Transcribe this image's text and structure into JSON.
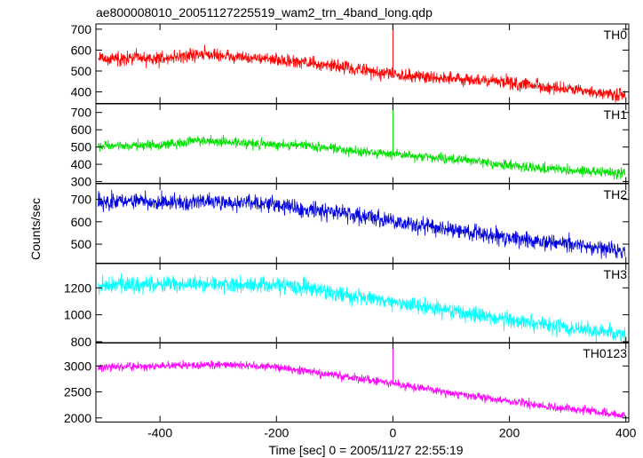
{
  "title": "ae800008010_20051127225519_wam2_trn_4band_long.qdp",
  "chart_data": {
    "type": "line",
    "title": "ae800008010_20051127225519_wam2_trn_4band_long.qdp",
    "xlabel": "Time [sec] 0 = 2005/11/27 22:55:19",
    "ylabel": "Counts/sec",
    "xlim": [
      -510,
      405
    ],
    "x_ticks": [
      -400,
      -200,
      0,
      200,
      400
    ],
    "grid": false,
    "legend": "none",
    "series": [
      {
        "name": "TH0",
        "color": "#ff0000",
        "ylim": [
          345,
          725
        ],
        "y_ticks": [
          400,
          500,
          600,
          700
        ],
        "level_points": [
          [
            -505,
            560
          ],
          [
            -400,
            560
          ],
          [
            -330,
            580
          ],
          [
            -250,
            565
          ],
          [
            -150,
            540
          ],
          [
            -50,
            505
          ],
          [
            0,
            485
          ],
          [
            100,
            465
          ],
          [
            200,
            445
          ],
          [
            300,
            410
          ],
          [
            400,
            380
          ]
        ],
        "noise": 22,
        "spike": {
          "x": 0,
          "y": 722
        }
      },
      {
        "name": "TH1",
        "color": "#00e000",
        "ylim": [
          290,
          750
        ],
        "y_ticks": [
          300,
          400,
          500,
          600,
          700
        ],
        "level_points": [
          [
            -505,
            505
          ],
          [
            -400,
            510
          ],
          [
            -330,
            540
          ],
          [
            -250,
            520
          ],
          [
            -150,
            510
          ],
          [
            -50,
            470
          ],
          [
            0,
            460
          ],
          [
            100,
            430
          ],
          [
            200,
            395
          ],
          [
            300,
            365
          ],
          [
            400,
            345
          ]
        ],
        "noise": 20,
        "spike": {
          "x": 0,
          "y": 745
        }
      },
      {
        "name": "TH2",
        "color": "#0000dd",
        "ylim": [
          415,
          770
        ],
        "y_ticks": [
          500,
          600,
          700
        ],
        "level_points": [
          [
            -505,
            690
          ],
          [
            -400,
            690
          ],
          [
            -300,
            690
          ],
          [
            -200,
            675
          ],
          [
            -100,
            645
          ],
          [
            0,
            600
          ],
          [
            100,
            565
          ],
          [
            200,
            530
          ],
          [
            300,
            500
          ],
          [
            400,
            465
          ]
        ],
        "noise": 26
      },
      {
        "name": "TH3",
        "color": "#00ffff",
        "ylim": [
          790,
          1380
        ],
        "y_ticks": [
          800,
          1000,
          1200
        ],
        "level_points": [
          [
            -505,
            1220
          ],
          [
            -400,
            1230
          ],
          [
            -300,
            1225
          ],
          [
            -200,
            1220
          ],
          [
            -150,
            1200
          ],
          [
            -50,
            1130
          ],
          [
            0,
            1090
          ],
          [
            100,
            1030
          ],
          [
            200,
            960
          ],
          [
            300,
            900
          ],
          [
            400,
            850
          ]
        ],
        "noise": 42
      },
      {
        "name": "TH0123",
        "color": "#ff00ff",
        "ylim": [
          1920,
          3450
        ],
        "y_ticks": [
          2000,
          2500,
          3000
        ],
        "level_points": [
          [
            -505,
            2980
          ],
          [
            -400,
            3000
          ],
          [
            -300,
            3030
          ],
          [
            -200,
            2980
          ],
          [
            -100,
            2820
          ],
          [
            0,
            2660
          ],
          [
            100,
            2480
          ],
          [
            200,
            2320
          ],
          [
            300,
            2180
          ],
          [
            400,
            2050
          ]
        ],
        "noise": 55,
        "spike": {
          "x": 0,
          "y": 3440
        }
      }
    ]
  }
}
